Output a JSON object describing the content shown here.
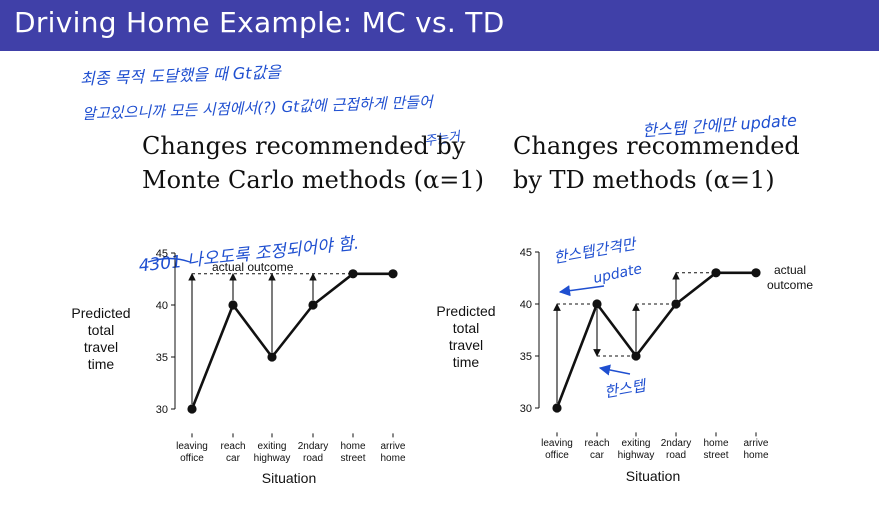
{
  "slide": {
    "title": "Driving Home Example: MC vs. TD",
    "header_color": "#4040a8"
  },
  "annotations": {
    "line1": "최종 목적 도달했을 때 Gt값을",
    "line2": "알고있으니까 모든 시점에서(?) Gt값에 근접하게 만들어",
    "line3_right": "한스텝 간에만 update",
    "mc_suffix": "주는거",
    "mc_chart_note": "4301 나오도록 조정되어야 함.",
    "td_chart_note1": "한스텝간격만",
    "td_chart_note2": "update",
    "td_chart_note3": "한스텝",
    "ink_color": "#1f4fd0"
  },
  "left_heading": {
    "line1": "Changes recommended by",
    "line2": "Monte Carlo methods (α=1)"
  },
  "right_heading": {
    "line1": "Changes recommended",
    "line2": "by TD methods (α=1)"
  },
  "ylabel_lines": [
    "Predicted",
    "total",
    "travel",
    "time"
  ],
  "xlabel": "Situation",
  "categories": [
    [
      "leaving",
      "office"
    ],
    [
      "reach",
      "car"
    ],
    [
      "exiting",
      "highway"
    ],
    [
      "2ndary",
      "road"
    ],
    [
      "home",
      "street"
    ],
    [
      "arrive",
      "home"
    ]
  ],
  "mc_actual_label": [
    "actual outcome"
  ],
  "td_actual_label": [
    "actual",
    "outcome"
  ],
  "chart_data": [
    {
      "type": "line",
      "categories": [
        "leaving office",
        "reach car",
        "exiting highway",
        "2ndary road",
        "home street",
        "arrive home"
      ],
      "series": [
        {
          "values": [
            30,
            40,
            35,
            40,
            43,
            43
          ]
        }
      ],
      "actual_outcome": 43,
      "ylim": [
        29,
        45
      ],
      "yticks": [
        30,
        35,
        40,
        45
      ],
      "arrows": [
        {
          "from_index": 0,
          "from": 30,
          "to": 43
        },
        {
          "from_index": 1,
          "from": 40,
          "to": 43
        },
        {
          "from_index": 2,
          "from": 35,
          "to": 43
        },
        {
          "from_index": 3,
          "from": 40,
          "to": 43
        }
      ]
    },
    {
      "type": "line",
      "categories": [
        "leaving office",
        "reach car",
        "exiting highway",
        "2ndary road",
        "home street",
        "arrive home"
      ],
      "series": [
        {
          "values": [
            30,
            40,
            35,
            40,
            43,
            43
          ]
        }
      ],
      "ylim": [
        29,
        45
      ],
      "yticks": [
        30,
        35,
        40,
        45
      ],
      "arrows": [
        {
          "from_index": 0,
          "from": 30,
          "to": 40
        },
        {
          "from_index": 1,
          "from": 40,
          "to": 35
        },
        {
          "from_index": 2,
          "from": 35,
          "to": 40
        },
        {
          "from_index": 3,
          "from": 40,
          "to": 43
        }
      ]
    }
  ]
}
